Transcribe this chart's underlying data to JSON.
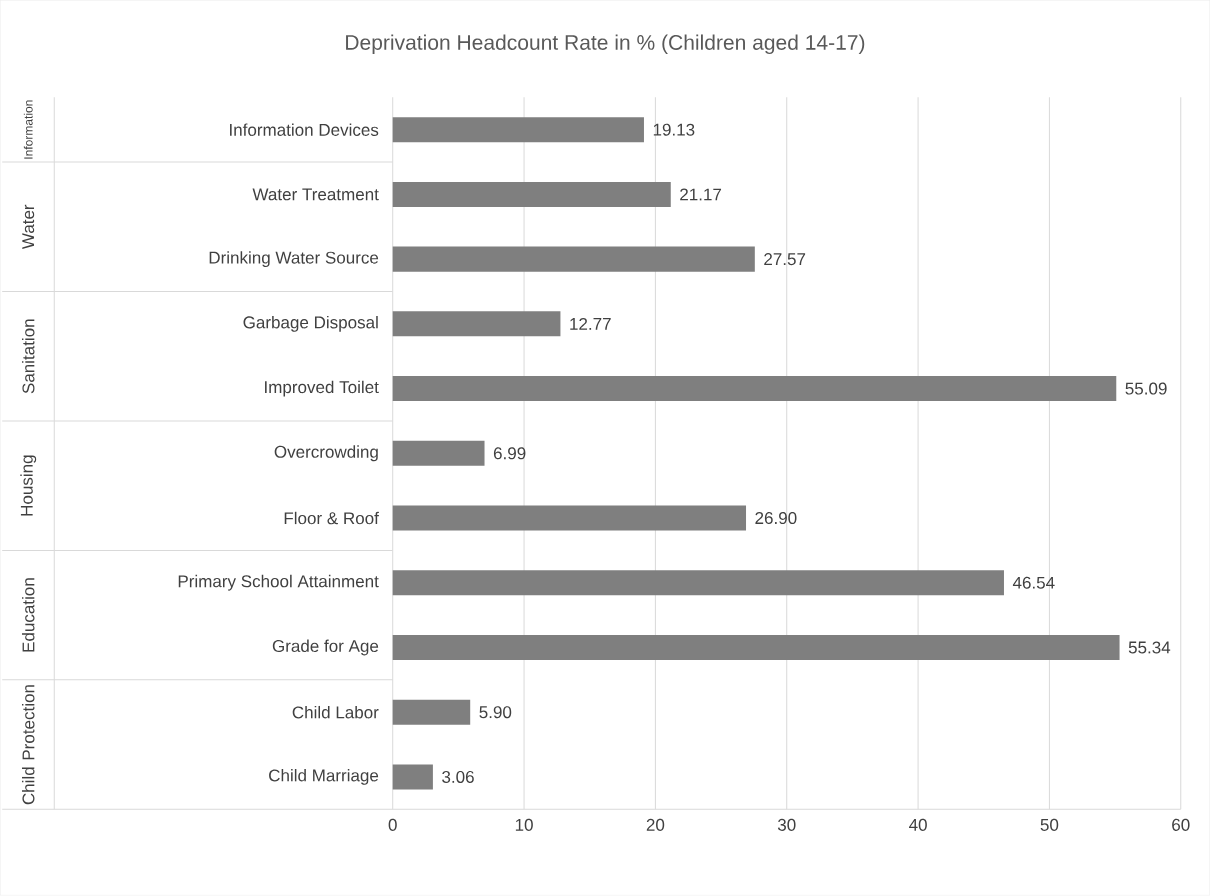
{
  "chart_data": {
    "type": "bar",
    "orientation": "horizontal",
    "title": "Deprivation Headcount Rate in % (Children aged 14-17)",
    "categories": [
      "Information Devices",
      "Water Treatment",
      "Drinking Water Source",
      "Garbage Disposal",
      "Improved Toilet",
      "Overcrowding",
      "Floor & Roof",
      "Primary School Attainment",
      "Grade for Age",
      "Child Labor",
      "Child Marriage"
    ],
    "values": [
      19.13,
      21.17,
      27.57,
      12.77,
      55.09,
      6.99,
      26.9,
      46.54,
      55.34,
      5.9,
      3.06
    ],
    "value_labels": [
      "19.13",
      "21.17",
      "27.57",
      "12.77",
      "55.09",
      "6.99",
      "26.90",
      "46.54",
      "55.34",
      "5.90",
      "3.06"
    ],
    "color": "#7f7f7f",
    "annotations": [
      "Information",
      "Water",
      "Sanitation",
      "Housing",
      "Education",
      "Child Protection"
    ],
    "xlim": [
      0,
      60
    ],
    "xticks": [
      0,
      10,
      20,
      30,
      40,
      50,
      60
    ],
    "grid": "x"
  }
}
